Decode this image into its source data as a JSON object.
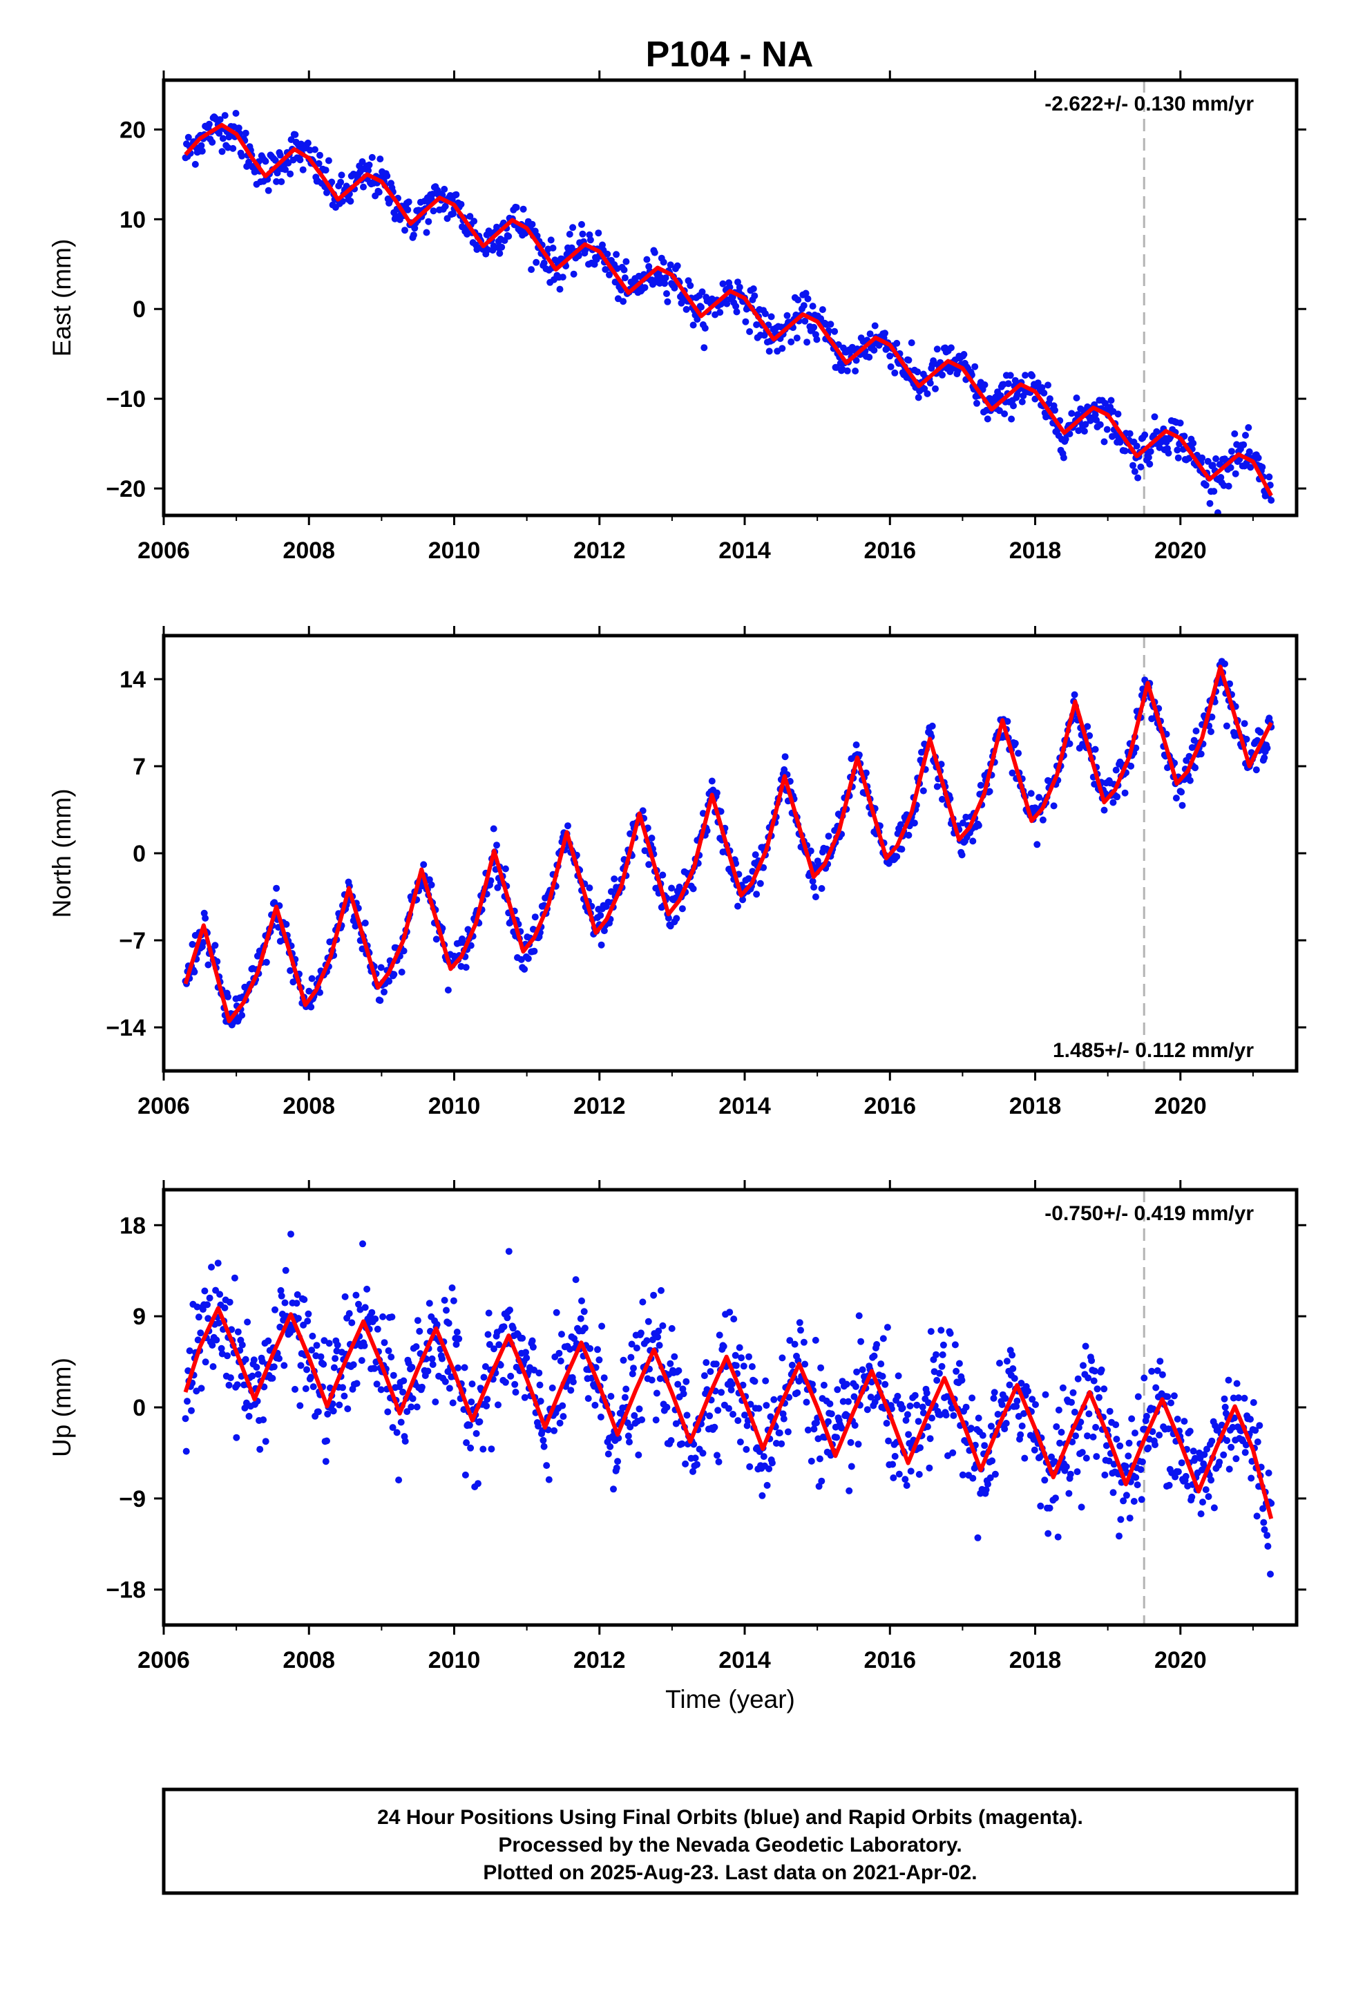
{
  "title": "P104 - NA",
  "colors": {
    "data": "#0a14f0",
    "model": "#ff0000",
    "marker": "#b4b4b4",
    "frame": "#000000"
  },
  "footer": {
    "line1": "24 Hour Positions Using Final Orbits (blue) and Rapid Orbits (magenta).",
    "line2": "Processed by the Nevada Geodetic Laboratory.",
    "line3": "Plotted on 2025-Aug-23. Last data on 2021-Apr-02."
  },
  "chart_data": [
    {
      "type": "scatter",
      "ylabel": "East (mm)",
      "xlabel": "",
      "xlim": [
        2006,
        2021.6
      ],
      "ylim": [
        -23,
        25.5
      ],
      "xticks": [
        2006,
        2008,
        2010,
        2012,
        2014,
        2016,
        2018,
        2020
      ],
      "yticks": [
        -20,
        -10,
        0,
        10,
        20
      ],
      "rate_text": "-2.622+/- 0.130 mm/yr",
      "rate_position": "top-right",
      "vline_x": 2019.5,
      "model": {
        "x": [
          2006.3,
          2006.5,
          2006.8,
          2007.0,
          2007.2,
          2007.4,
          2007.8,
          2008.0,
          2008.2,
          2008.4,
          2008.8,
          2009.0,
          2009.2,
          2009.4,
          2009.8,
          2010.0,
          2010.2,
          2010.4,
          2010.8,
          2011.0,
          2011.2,
          2011.4,
          2011.8,
          2012.0,
          2012.2,
          2012.4,
          2012.8,
          2013.0,
          2013.2,
          2013.4,
          2013.8,
          2014.0,
          2014.2,
          2014.4,
          2014.8,
          2015.0,
          2015.2,
          2015.4,
          2015.8,
          2016.0,
          2016.2,
          2016.4,
          2016.8,
          2017.0,
          2017.2,
          2017.4,
          2017.8,
          2018.0,
          2018.2,
          2018.4,
          2018.8,
          2019.0,
          2019.2,
          2019.4,
          2019.8,
          2020.0,
          2020.2,
          2020.4,
          2020.8,
          2021.0,
          2021.25
        ],
        "y": [
          17.2,
          19.0,
          20.5,
          19.5,
          17.0,
          14.8,
          17.8,
          16.8,
          14.6,
          12.2,
          15.0,
          14.2,
          12.0,
          9.5,
          12.4,
          11.6,
          9.3,
          7.0,
          9.9,
          9.0,
          6.7,
          4.4,
          7.2,
          6.4,
          4.1,
          1.8,
          4.6,
          3.8,
          1.5,
          -0.8,
          2.0,
          1.2,
          -1.1,
          -3.4,
          -0.6,
          -1.4,
          -3.7,
          -6.0,
          -3.2,
          -4.0,
          -6.3,
          -8.6,
          -5.8,
          -6.6,
          -8.9,
          -11.2,
          -8.4,
          -9.2,
          -11.5,
          -13.8,
          -11.0,
          -11.8,
          -14.1,
          -16.4,
          -13.6,
          -14.4,
          -16.7,
          -19.0,
          -16.2,
          -17.0,
          -20.8
        ]
      },
      "points": {
        "trend_start": 18.2,
        "trend_end": -20.6,
        "annual_amplitude": 2.8,
        "noise": 1.4,
        "count": 1100
      }
    },
    {
      "type": "scatter",
      "ylabel": "North (mm)",
      "xlabel": "",
      "xlim": [
        2006,
        2021.6
      ],
      "ylim": [
        -17.5,
        17.5
      ],
      "xticks": [
        2006,
        2008,
        2010,
        2012,
        2014,
        2016,
        2018,
        2020
      ],
      "yticks": [
        -14,
        -7,
        0,
        7,
        14
      ],
      "rate_text": "1.485+/- 0.112 mm/yr",
      "rate_position": "bottom-right",
      "vline_x": 2019.5,
      "model": {
        "x": [
          2006.3,
          2006.55,
          2006.9,
          2007.1,
          2007.3,
          2007.55,
          2007.95,
          2008.1,
          2008.3,
          2008.55,
          2008.95,
          2009.1,
          2009.3,
          2009.55,
          2009.95,
          2010.1,
          2010.3,
          2010.55,
          2010.95,
          2011.1,
          2011.3,
          2011.55,
          2011.95,
          2012.1,
          2012.3,
          2012.55,
          2012.95,
          2013.1,
          2013.3,
          2013.55,
          2013.95,
          2014.1,
          2014.3,
          2014.55,
          2014.95,
          2015.1,
          2015.3,
          2015.55,
          2015.95,
          2016.1,
          2016.3,
          2016.55,
          2016.95,
          2017.1,
          2017.3,
          2017.55,
          2017.95,
          2018.1,
          2018.3,
          2018.55,
          2018.95,
          2019.1,
          2019.3,
          2019.55,
          2019.95,
          2020.1,
          2020.3,
          2020.55,
          2020.95,
          2021.25
        ],
        "y": [
          -10.5,
          -5.8,
          -13.5,
          -12.0,
          -9.5,
          -4.3,
          -12.2,
          -11.0,
          -8.3,
          -2.8,
          -10.8,
          -9.6,
          -7.0,
          -1.3,
          -9.3,
          -8.3,
          -5.6,
          0.2,
          -7.9,
          -6.8,
          -4.1,
          1.7,
          -6.4,
          -5.3,
          -2.7,
          3.2,
          -4.9,
          -3.8,
          -1.2,
          4.7,
          -3.4,
          -2.4,
          0.3,
          6.2,
          -1.9,
          -0.9,
          1.8,
          7.7,
          -0.4,
          0.6,
          3.3,
          9.2,
          1.1,
          2.1,
          4.8,
          10.7,
          2.6,
          3.6,
          6.3,
          12.2,
          4.1,
          5.1,
          7.8,
          13.7,
          5.6,
          6.6,
          9.3,
          15.0,
          7.0,
          10.5
        ]
      },
      "points": {
        "trend_start": -9.3,
        "trend_end": 11.3,
        "annual_amplitude": 4.2,
        "noise": 1.0,
        "count": 1100
      }
    },
    {
      "type": "scatter",
      "ylabel": "Up (mm)",
      "xlabel": "Time (year)",
      "xlim": [
        2006,
        2021.6
      ],
      "ylim": [
        -21.5,
        21.5
      ],
      "xticks": [
        2006,
        2008,
        2010,
        2012,
        2014,
        2016,
        2018,
        2020
      ],
      "yticks": [
        -18,
        -9,
        0,
        9,
        18
      ],
      "rate_text": "-0.750+/- 0.419 mm/yr",
      "rate_position": "top-right",
      "vline_x": 2019.5,
      "model": {
        "x": [
          2006.3,
          2006.5,
          2006.75,
          2007.0,
          2007.25,
          2007.5,
          2007.75,
          2008.0,
          2008.25,
          2008.5,
          2008.75,
          2009.0,
          2009.25,
          2009.5,
          2009.75,
          2010.0,
          2010.25,
          2010.5,
          2010.75,
          2011.0,
          2011.25,
          2011.5,
          2011.75,
          2012.0,
          2012.25,
          2012.5,
          2012.75,
          2013.0,
          2013.25,
          2013.5,
          2013.75,
          2014.0,
          2014.25,
          2014.5,
          2014.75,
          2015.0,
          2015.25,
          2015.5,
          2015.75,
          2016.0,
          2016.25,
          2016.5,
          2016.75,
          2017.0,
          2017.25,
          2017.5,
          2017.75,
          2018.0,
          2018.25,
          2018.5,
          2018.75,
          2019.0,
          2019.25,
          2019.5,
          2019.75,
          2020.0,
          2020.25,
          2020.5,
          2020.75,
          2021.0,
          2021.25
        ],
        "y": [
          1.5,
          6.0,
          9.8,
          5.5,
          0.8,
          5.2,
          9.2,
          4.9,
          0.1,
          4.5,
          8.5,
          4.2,
          -0.6,
          3.8,
          7.8,
          3.5,
          -1.3,
          3.1,
          7.1,
          2.8,
          -2.0,
          2.4,
          6.4,
          2.1,
          -2.7,
          1.7,
          5.7,
          1.4,
          -3.4,
          1.0,
          5.0,
          0.7,
          -4.1,
          0.3,
          4.3,
          0.0,
          -4.8,
          -0.4,
          3.6,
          -0.7,
          -5.5,
          -1.1,
          2.9,
          -1.4,
          -6.2,
          -1.8,
          2.2,
          -2.1,
          -6.9,
          -2.5,
          1.5,
          -2.8,
          -7.6,
          -3.2,
          0.8,
          -3.5,
          -8.3,
          -3.9,
          0.1,
          -4.2,
          -11.0
        ]
      },
      "points": {
        "trend_start": 5.0,
        "trend_end": -6.5,
        "annual_amplitude": 4.5,
        "noise": 3.6,
        "count": 1300
      }
    }
  ]
}
